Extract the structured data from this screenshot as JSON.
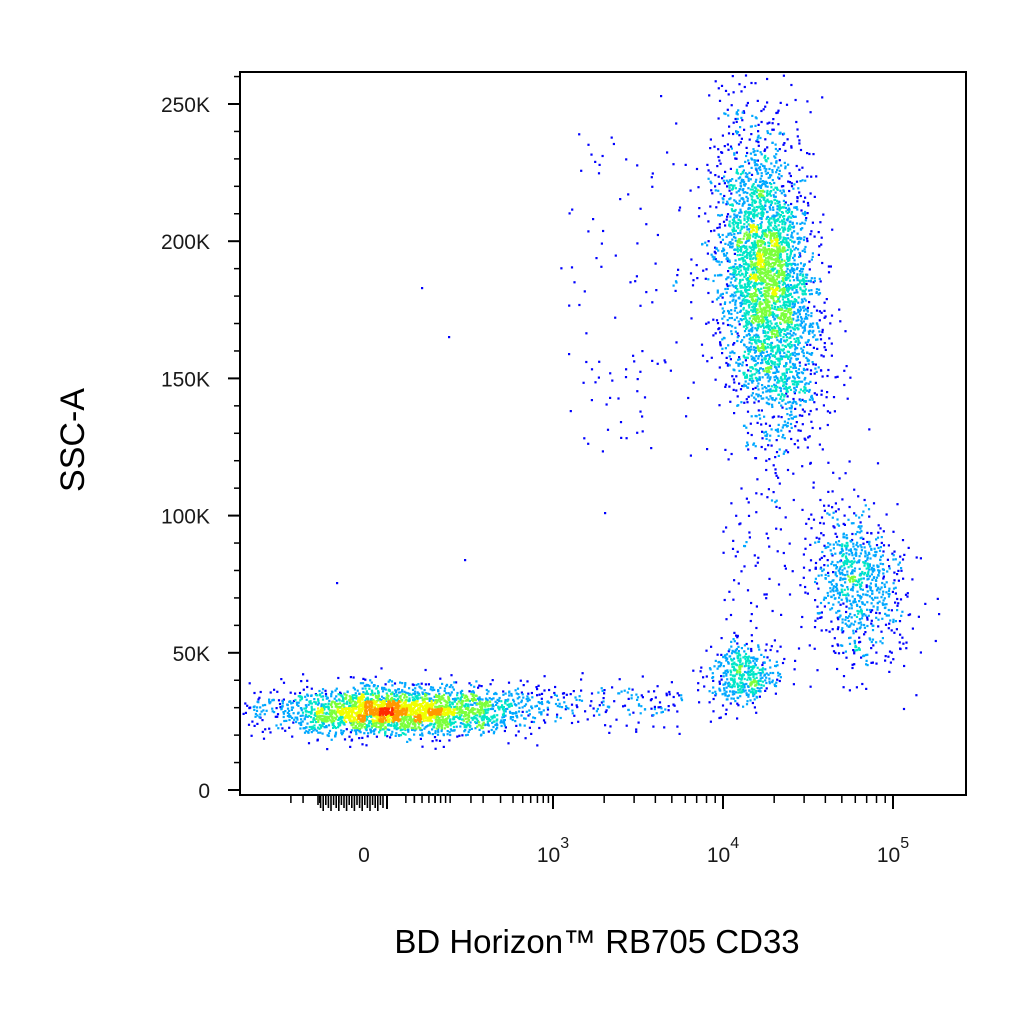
{
  "chart_data": {
    "type": "scatter",
    "subtype": "flow-cytometry-density-dot-plot",
    "xlabel": "BD Horizon™ RB705 CD33",
    "ylabel": "SSC-A",
    "x_scale": "biexponential",
    "x_range": [
      -300,
      200000
    ],
    "y_range": [
      0,
      262144
    ],
    "x_ticks": [
      {
        "value": 0,
        "base": "0",
        "exp": ""
      },
      {
        "value": 1000,
        "base": "10",
        "exp": "3"
      },
      {
        "value": 10000,
        "base": "10",
        "exp": "4"
      },
      {
        "value": 100000,
        "base": "10",
        "exp": "5"
      }
    ],
    "y_ticks": [
      {
        "value": 0,
        "label": "0"
      },
      {
        "value": 50000,
        "label": "50K"
      },
      {
        "value": 100000,
        "label": "100K"
      },
      {
        "value": 150000,
        "label": "150K"
      },
      {
        "value": 200000,
        "label": "200K"
      },
      {
        "value": 250000,
        "label": "250K"
      }
    ],
    "populations": [
      {
        "center_x": 10,
        "center_y": 29000,
        "count": 2600
      },
      {
        "center_x": 18000,
        "center_y": 185000,
        "count": 3500
      },
      {
        "center_x": 13000,
        "center_y": 42000,
        "count": 450
      },
      {
        "center_x": 60000,
        "center_y": 75000,
        "count": 800
      },
      {
        "center_x": 1000,
        "center_y": 32000,
        "count": 260
      }
    ],
    "density_colors": [
      "#0000ff",
      "#00a8ff",
      "#00e6c8",
      "#7cff3c",
      "#f0ff00",
      "#ff9900",
      "#ff2a00"
    ],
    "grid": false,
    "legend": "none"
  }
}
